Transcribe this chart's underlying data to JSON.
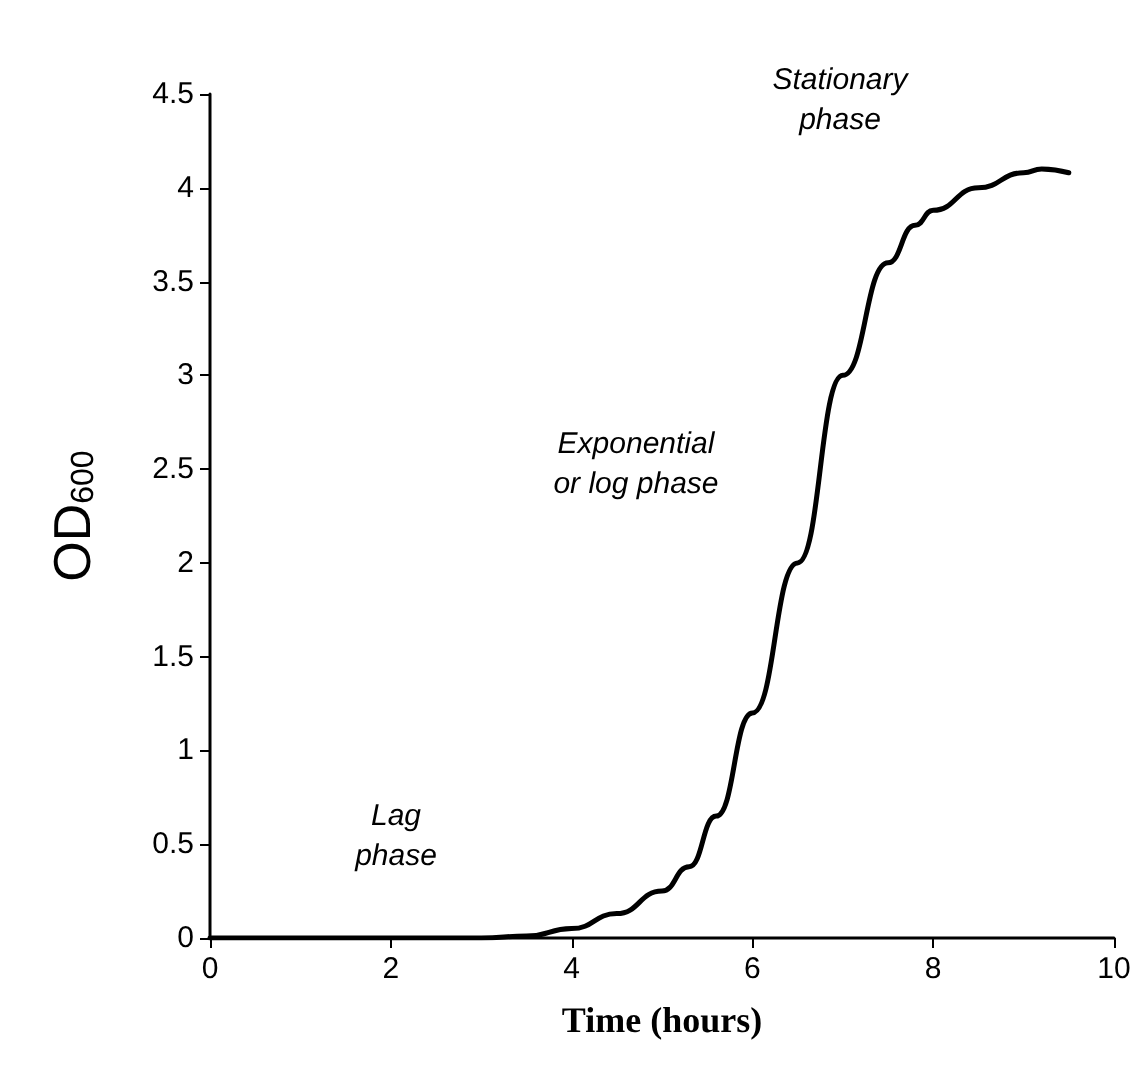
{
  "chart_data": {
    "type": "line",
    "xlabel": "Time (hours)",
    "ylabel": "OD$_{600}$",
    "xlim": [
      0,
      10
    ],
    "xticks": [
      0,
      2,
      4,
      6,
      8,
      10
    ],
    "ylim": [
      0,
      4.5
    ],
    "yticks": [
      0,
      0.5,
      1,
      1.5,
      2,
      2.5,
      3,
      3.5,
      4,
      4.5
    ],
    "grid": false,
    "marker": "none",
    "line_style": "solid",
    "series": [
      {
        "color": "#000000",
        "x": [
          0,
          1,
          2,
          3,
          3.5,
          4,
          4.5,
          5,
          5.3,
          5.6,
          6,
          6.5,
          7,
          7.5,
          7.8,
          8,
          8.5,
          9,
          9.2,
          9.5
        ],
        "values": [
          0,
          0,
          0,
          0,
          0.01,
          0.05,
          0.13,
          0.25,
          0.38,
          0.65,
          1.2,
          2.0,
          3.0,
          3.6,
          3.8,
          3.88,
          4.0,
          4.08,
          4.1,
          4.08
        ]
      }
    ],
    "annotations": [
      "Lag\nphase",
      "Exponential\nor log phase",
      "Stationary\nphase"
    ]
  }
}
